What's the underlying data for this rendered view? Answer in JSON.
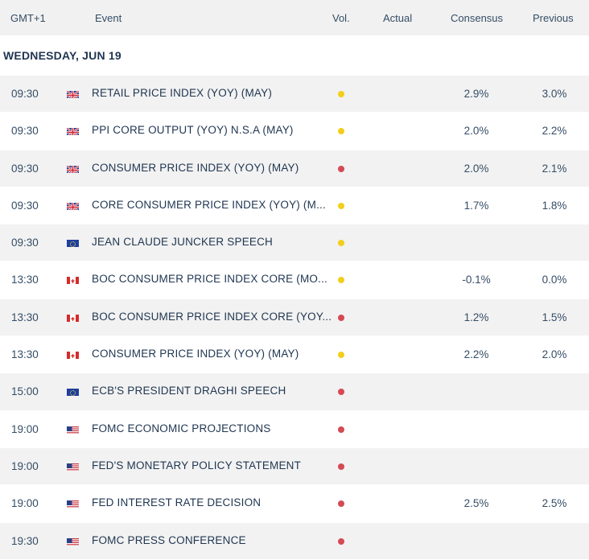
{
  "header": {
    "gmt": "GMT+1",
    "event": "Event",
    "vol": "Vol.",
    "actual": "Actual",
    "consensus": "Consensus",
    "previous": "Previous"
  },
  "date_label": "WEDNESDAY, JUN 19",
  "colors": {
    "yellow": "#f2cf1d",
    "red": "#d44a55"
  },
  "events": [
    {
      "time": "09:30",
      "country": "uk",
      "flag_icon": "uk-flag-icon",
      "event": "RETAIL PRICE INDEX (YOY) (MAY)",
      "vol": "yellow",
      "actual": "",
      "consensus": "2.9%",
      "previous": "3.0%"
    },
    {
      "time": "09:30",
      "country": "uk",
      "flag_icon": "uk-flag-icon",
      "event": "PPI CORE OUTPUT (YOY) N.S.A (MAY)",
      "vol": "yellow",
      "actual": "",
      "consensus": "2.0%",
      "previous": "2.2%"
    },
    {
      "time": "09:30",
      "country": "uk",
      "flag_icon": "uk-flag-icon",
      "event": "CONSUMER PRICE INDEX (YOY) (MAY)",
      "vol": "red",
      "actual": "",
      "consensus": "2.0%",
      "previous": "2.1%"
    },
    {
      "time": "09:30",
      "country": "uk",
      "flag_icon": "uk-flag-icon",
      "event": "CORE CONSUMER PRICE INDEX (YOY) (M...",
      "vol": "yellow",
      "actual": "",
      "consensus": "1.7%",
      "previous": "1.8%"
    },
    {
      "time": "09:30",
      "country": "eu",
      "flag_icon": "eu-flag-icon",
      "event": "JEAN CLAUDE JUNCKER SPEECH",
      "vol": "yellow",
      "actual": "",
      "consensus": "",
      "previous": ""
    },
    {
      "time": "13:30",
      "country": "ca",
      "flag_icon": "canada-flag-icon",
      "event": "BOC CONSUMER PRICE INDEX CORE (MO...",
      "vol": "yellow",
      "actual": "",
      "consensus": "-0.1%",
      "previous": "0.0%"
    },
    {
      "time": "13:30",
      "country": "ca",
      "flag_icon": "canada-flag-icon",
      "event": "BOC CONSUMER PRICE INDEX CORE (YOY...",
      "vol": "red",
      "actual": "",
      "consensus": "1.2%",
      "previous": "1.5%"
    },
    {
      "time": "13:30",
      "country": "ca",
      "flag_icon": "canada-flag-icon",
      "event": "CONSUMER PRICE INDEX (YOY) (MAY)",
      "vol": "yellow",
      "actual": "",
      "consensus": "2.2%",
      "previous": "2.0%"
    },
    {
      "time": "15:00",
      "country": "eu",
      "flag_icon": "eu-flag-icon",
      "event": "ECB'S PRESIDENT DRAGHI SPEECH",
      "vol": "red",
      "actual": "",
      "consensus": "",
      "previous": ""
    },
    {
      "time": "19:00",
      "country": "us",
      "flag_icon": "us-flag-icon",
      "event": "FOMC ECONOMIC PROJECTIONS",
      "vol": "red",
      "actual": "",
      "consensus": "",
      "previous": ""
    },
    {
      "time": "19:00",
      "country": "us",
      "flag_icon": "us-flag-icon",
      "event": "FED'S MONETARY POLICY STATEMENT",
      "vol": "red",
      "actual": "",
      "consensus": "",
      "previous": ""
    },
    {
      "time": "19:00",
      "country": "us",
      "flag_icon": "us-flag-icon",
      "event": "FED INTEREST RATE DECISION",
      "vol": "red",
      "actual": "",
      "consensus": "2.5%",
      "previous": "2.5%"
    },
    {
      "time": "19:30",
      "country": "us",
      "flag_icon": "us-flag-icon",
      "event": "FOMC PRESS CONFERENCE",
      "vol": "red",
      "actual": "",
      "consensus": "",
      "previous": ""
    }
  ]
}
